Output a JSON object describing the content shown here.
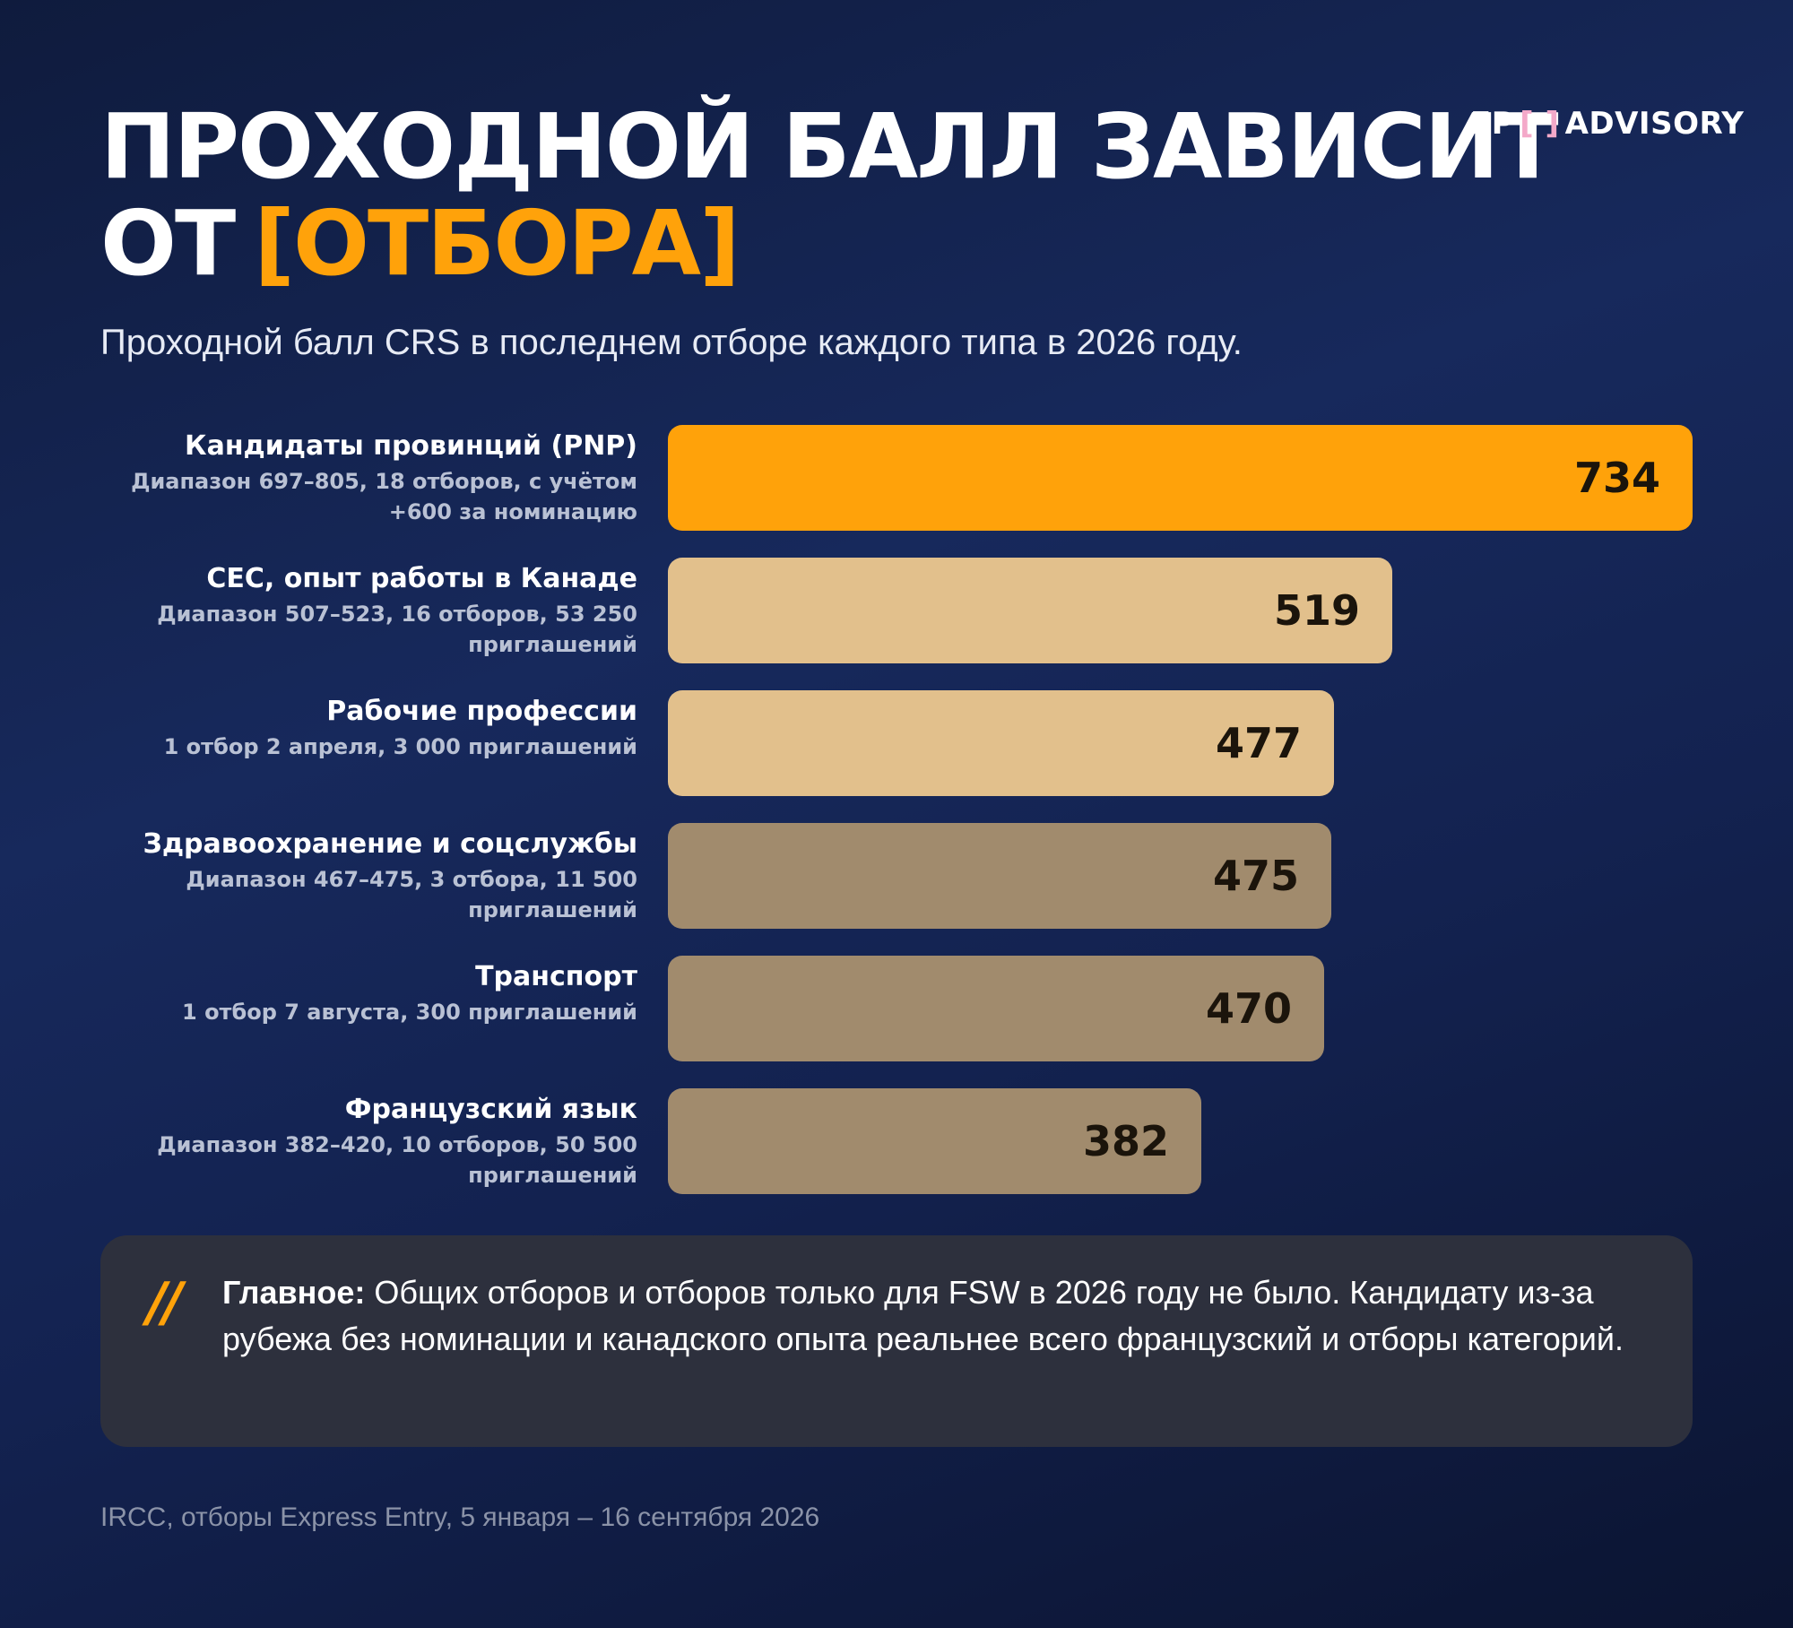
{
  "header": {
    "title_line1": "ПРОХОДНОЙ БАЛЛ ЗАВИСИТ",
    "title_line2_prefix": "ОТ",
    "title_line2_accent": "[ОТБОРА]",
    "subtitle": "Проходной балл CRS в последнем отборе каждого типа в 2026 году."
  },
  "logo": {
    "left": "EP",
    "bracket": "[ ]",
    "right": "ADVISORY"
  },
  "chart_data": {
    "type": "bar",
    "orientation": "horizontal",
    "categories": [
      "Кандидаты провинций (PNP)",
      "CEC, опыт работы в Канаде",
      "Рабочие профессии",
      "Здравоохранение и соцслужбы",
      "Транспорт",
      "Французский язык"
    ],
    "descriptions": [
      "Диапазон 697–805, 18 отборов, с учётом +600 за номинацию",
      "Диапазон 507–523, 16 отборов, 53 250 приглашений",
      "1 отбор 2 апреля, 3 000 приглашений",
      "Диапазон 467–475, 3 отбора, 11 500 приглашений",
      "1 отбор 7 августа, 300 приглашений",
      "Диапазон 382–420, 10 отборов, 50 500 приглашений"
    ],
    "values": [
      734,
      519,
      477,
      475,
      470,
      382
    ],
    "colors": [
      "#ffa20a",
      "#e2c08c",
      "#e2c08c",
      "#a18b6d",
      "#a18b6d",
      "#a18b6d"
    ],
    "data_labels": true,
    "grid": false,
    "title": "",
    "xlabel": "",
    "ylabel": ""
  },
  "callout": {
    "mark": "//",
    "lead": "Главное:",
    "text": "Общих отборов и отборов только для FSW в 2026 году не было. Кандидату из-за рубежа без номинации и канадского опыта реальнее всего французский и отборы категорий."
  },
  "source": "IRCC, отборы Express Entry, 5 января – 16 сентября 2026"
}
